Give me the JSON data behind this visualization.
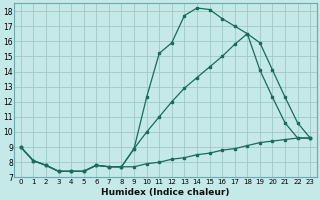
{
  "xlabel": "Humidex (Indice chaleur)",
  "bg_color": "#c5e8e8",
  "grid_color": "#9fc8c8",
  "line_color": "#1a6b5a",
  "xlim": [
    -0.5,
    23.5
  ],
  "ylim": [
    7,
    18.5
  ],
  "xticks": [
    0,
    1,
    2,
    3,
    4,
    5,
    6,
    7,
    8,
    9,
    10,
    11,
    12,
    13,
    14,
    15,
    16,
    17,
    18,
    19,
    20,
    21,
    22,
    23
  ],
  "yticks": [
    7,
    8,
    9,
    10,
    11,
    12,
    13,
    14,
    15,
    16,
    17,
    18
  ],
  "line1_x": [
    0,
    1,
    2,
    3,
    4,
    5,
    6,
    7,
    8,
    9,
    10,
    11,
    12,
    13,
    14,
    15,
    16,
    17,
    18,
    19,
    20,
    21,
    22,
    23
  ],
  "line1_y": [
    9.0,
    8.1,
    7.8,
    7.4,
    7.4,
    7.4,
    7.8,
    7.7,
    7.7,
    8.9,
    12.3,
    15.2,
    15.9,
    17.7,
    18.2,
    18.1,
    17.5,
    17.0,
    16.5,
    15.9,
    14.1,
    12.3,
    10.6,
    9.6
  ],
  "line2_x": [
    0,
    1,
    2,
    3,
    4,
    5,
    6,
    7,
    8,
    9,
    10,
    11,
    12,
    13,
    14,
    15,
    16,
    17,
    18,
    19,
    20,
    21,
    22,
    23
  ],
  "line2_y": [
    9.0,
    8.1,
    7.8,
    7.4,
    7.4,
    7.4,
    7.8,
    7.7,
    7.7,
    8.9,
    10.0,
    11.0,
    12.0,
    12.9,
    13.6,
    14.3,
    15.0,
    15.8,
    16.5,
    14.1,
    12.3,
    10.6,
    9.6,
    9.6
  ],
  "line3_x": [
    0,
    1,
    2,
    3,
    4,
    5,
    6,
    7,
    8,
    9,
    10,
    11,
    12,
    13,
    14,
    15,
    16,
    17,
    18,
    19,
    20,
    21,
    22,
    23
  ],
  "line3_y": [
    9.0,
    8.1,
    7.8,
    7.4,
    7.4,
    7.4,
    7.8,
    7.7,
    7.7,
    7.7,
    7.9,
    8.0,
    8.2,
    8.3,
    8.5,
    8.6,
    8.8,
    8.9,
    9.1,
    9.3,
    9.4,
    9.5,
    9.6,
    9.6
  ]
}
